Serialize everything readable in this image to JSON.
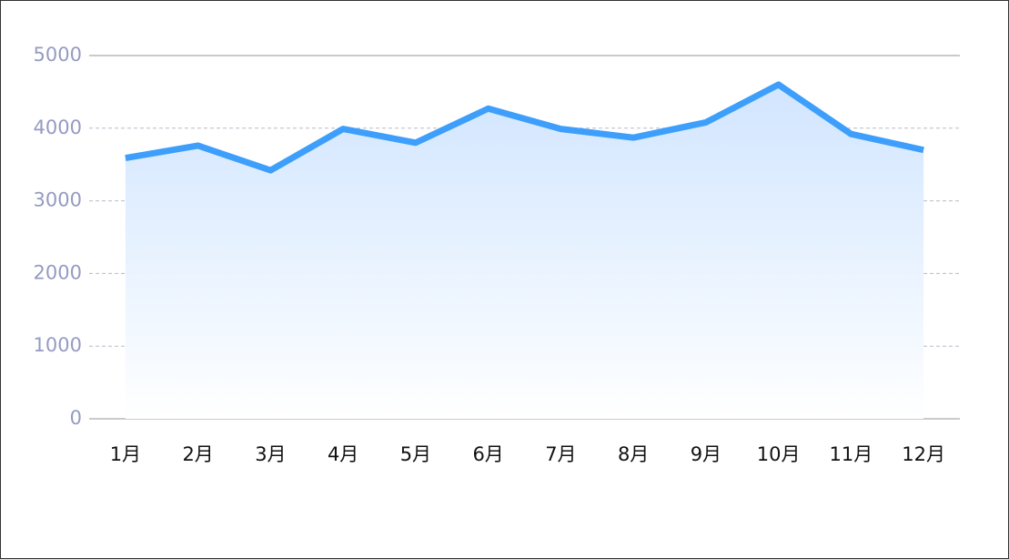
{
  "chart_data": {
    "type": "area",
    "categories": [
      "1月",
      "2月",
      "3月",
      "4月",
      "5月",
      "6月",
      "7月",
      "8月",
      "9月",
      "10月",
      "11月",
      "12月"
    ],
    "series": [
      {
        "color": "#3d9ffb",
        "values": [
          3590,
          3760,
          3420,
          3990,
          3800,
          4270,
          3990,
          3870,
          4080,
          4600,
          3920,
          3700
        ]
      }
    ],
    "ylim": [
      0,
      5000
    ],
    "yticks": [
      0,
      1000,
      2000,
      3000,
      4000,
      5000
    ],
    "grid": true
  }
}
